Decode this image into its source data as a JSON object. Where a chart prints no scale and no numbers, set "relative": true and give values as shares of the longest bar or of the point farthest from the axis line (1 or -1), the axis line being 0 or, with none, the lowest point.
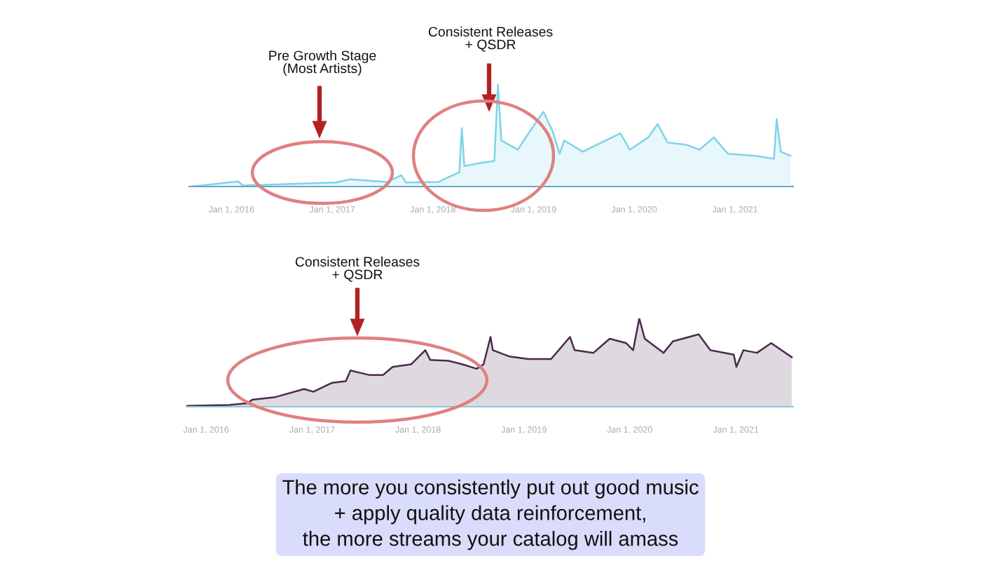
{
  "chart_data": [
    {
      "type": "area",
      "relative": true,
      "annotations": [
        "Pre Growth Stage\n(Most Artists)",
        "Consistent Releases\n+ QSDR"
      ],
      "xlim": [
        "2015-08-01",
        "2021-07-31"
      ],
      "xticks": [
        {
          "value": "2016-01-01",
          "label": "Jan 1, 2016"
        },
        {
          "value": "2017-01-01",
          "label": "Jan 1, 2017"
        },
        {
          "value": "2018-01-01",
          "label": "Jan 1, 2018"
        },
        {
          "value": "2019-01-01",
          "label": "Jan 1, 2019"
        },
        {
          "value": "2020-01-01",
          "label": "Jan 1, 2020"
        },
        {
          "value": "2021-01-01",
          "label": "Jan 1, 2021"
        }
      ],
      "series": [
        {
          "color": "#7fd3e8",
          "x": [
            "2015-08-10",
            "2016-01-25",
            "2016-02-12",
            "2017-01-15",
            "2017-03-06",
            "2017-07-18",
            "2017-09-09",
            "2017-09-25",
            "2018-01-22",
            "2018-02-25",
            "2018-04-07",
            "2018-04-16",
            "2018-04-25",
            "2018-06-22",
            "2018-08-12",
            "2018-08-25",
            "2018-09-06",
            "2018-11-05",
            "2018-12-09",
            "2019-02-06",
            "2019-03-10",
            "2019-04-06",
            "2019-04-22",
            "2019-06-29",
            "2019-09-05",
            "2019-11-12",
            "2019-12-16",
            "2020-02-21",
            "2020-03-26",
            "2020-05-01",
            "2020-07-06",
            "2020-08-25",
            "2020-10-16",
            "2020-12-06",
            "2021-03-16",
            "2021-05-22",
            "2021-06-01",
            "2021-06-16",
            "2021-07-21"
          ],
          "values": [
            0,
            0.05,
            0.01,
            0.04,
            0.07,
            0.045,
            0.11,
            0.04,
            0.045,
            0.09,
            0.14,
            0.57,
            0.2,
            0.23,
            0.25,
            1.0,
            0.45,
            0.36,
            0.5,
            0.73,
            0.55,
            0.32,
            0.45,
            0.34,
            0.43,
            0.52,
            0.36,
            0.48,
            0.61,
            0.43,
            0.41,
            0.36,
            0.48,
            0.32,
            0.3,
            0.27,
            0.66,
            0.34,
            0.3
          ]
        }
      ]
    },
    {
      "type": "area",
      "relative": true,
      "annotations": [
        "Consistent Releases\n+ QSDR",
        "The more you consistently put out good music\n+ apply quality data reinforcement,\nthe more streams your catalog will amass"
      ],
      "xlim": [
        "2015-10-25",
        "2021-07-18"
      ],
      "xticks": [
        {
          "value": "2016-01-01",
          "label": "Jan 1, 2016"
        },
        {
          "value": "2017-01-01",
          "label": "Jan 1, 2017"
        },
        {
          "value": "2018-01-01",
          "label": "Jan 1, 2018"
        },
        {
          "value": "2019-01-01",
          "label": "Jan 1, 2019"
        },
        {
          "value": "2020-01-01",
          "label": "Jan 1, 2020"
        },
        {
          "value": "2021-01-01",
          "label": "Jan 1, 2021"
        }
      ],
      "series": [
        {
          "color": "#4a2a4a",
          "x": [
            "2015-10-27",
            "2016-03-19",
            "2016-05-23",
            "2016-06-08",
            "2016-08-28",
            "2016-12-04",
            "2017-01-05",
            "2017-03-10",
            "2017-04-27",
            "2017-05-13",
            "2017-07-16",
            "2017-09-03",
            "2017-10-05",
            "2017-12-08",
            "2018-01-26",
            "2018-02-12",
            "2018-04-16",
            "2018-06-03",
            "2018-07-22",
            "2018-08-15",
            "2018-09-08",
            "2018-09-16",
            "2018-11-11",
            "2019-01-16",
            "2019-04-05",
            "2019-06-09",
            "2019-06-25",
            "2019-08-29",
            "2019-10-24",
            "2019-12-20",
            "2020-01-13",
            "2020-02-03",
            "2020-02-22",
            "2020-04-27",
            "2020-05-29",
            "2020-08-26",
            "2020-10-05",
            "2020-12-25",
            "2021-01-03",
            "2021-01-27",
            "2021-03-15",
            "2021-05-03",
            "2021-07-13"
          ],
          "values": [
            0.01,
            0.02,
            0.04,
            0.08,
            0.11,
            0.2,
            0.17,
            0.27,
            0.29,
            0.41,
            0.36,
            0.36,
            0.45,
            0.48,
            0.64,
            0.53,
            0.52,
            0.48,
            0.43,
            0.48,
            0.79,
            0.64,
            0.57,
            0.54,
            0.54,
            0.79,
            0.64,
            0.61,
            0.77,
            0.72,
            0.64,
            1.0,
            0.77,
            0.61,
            0.74,
            0.82,
            0.64,
            0.59,
            0.45,
            0.64,
            0.61,
            0.72,
            0.56
          ]
        }
      ]
    }
  ]
}
